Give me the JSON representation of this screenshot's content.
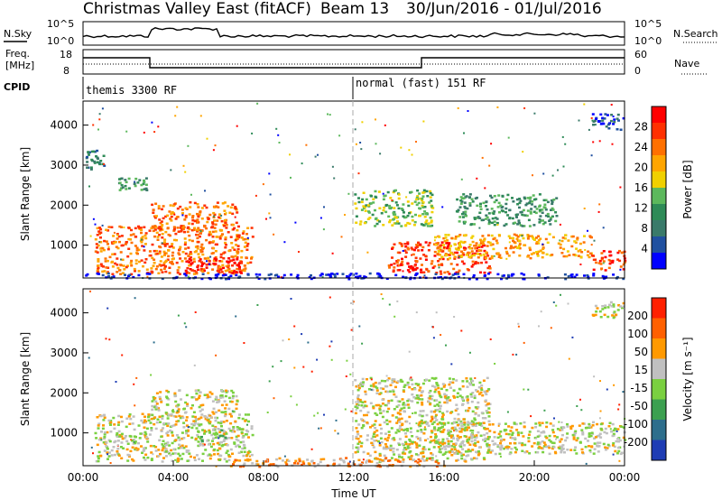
{
  "header": {
    "title": "Christmas Valley East (fitACF)",
    "beam": "Beam 13",
    "date_range": "30/Jun/2016 - 01/Jul/2016"
  },
  "noise_panel": {
    "left_label": "N.Sky",
    "left_ticks": [
      "10^5",
      "10^0"
    ],
    "right_ticks": [
      "10^5",
      "10^0"
    ],
    "right_label": "N.Search"
  },
  "freq_panel": {
    "left_label_1": "Freq.",
    "left_label_2": "[MHz]",
    "left_ticks": [
      "18",
      "8"
    ],
    "right_ticks": [
      "60",
      "0"
    ],
    "right_label": "Nave"
  },
  "cpid_panel": {
    "label": "CPID",
    "modes": [
      {
        "name": "themis 3300 RF",
        "start_hour": 0
      },
      {
        "name": "normal (fast) 151 RF",
        "start_hour": 12
      }
    ]
  },
  "x_axis": {
    "label": "Time UT",
    "ticks": [
      "00:00",
      "04:00",
      "08:00",
      "12:00",
      "16:00",
      "20:00",
      "00:00"
    ]
  },
  "power_panel": {
    "ylabel": "Slant Range [km]",
    "yticks": [
      "4000",
      "3000",
      "2000",
      "1000"
    ],
    "colorbar_label": "Power [dB]",
    "colorbar_ticks": [
      "28",
      "24",
      "20",
      "16",
      "12",
      "8",
      "4"
    ],
    "colors": [
      "#0000ff",
      "#2050a0",
      "#3a7a6a",
      "#2e8b57",
      "#5cb85c",
      "#f0d000",
      "#ffa500",
      "#ff7000",
      "#ff3000",
      "#ff0000"
    ]
  },
  "velocity_panel": {
    "ylabel": "Slant Range [km]",
    "yticks": [
      "4000",
      "3000",
      "2000",
      "1000"
    ],
    "colorbar_label": "Velocity [m s⁻¹]",
    "colorbar_ticks": [
      "200",
      "100",
      "50",
      "15",
      "-15",
      "-50",
      "-100",
      "-200"
    ],
    "colors": [
      "#1e3cb4",
      "#2d6e8c",
      "#3ca050",
      "#7ad040",
      "#c0c0c0",
      "#ff9900",
      "#ff6000",
      "#ff2000"
    ]
  },
  "chart_data": {
    "type": "heatmap",
    "x_range_hours": [
      0,
      24
    ],
    "y_range_km": [
      180,
      4600
    ],
    "power_blobs": [
      {
        "t0": 0.1,
        "t1": 0.9,
        "r0": 2900,
        "r1": 3400,
        "level": 2
      },
      {
        "t0": 0.5,
        "t1": 7.5,
        "r0": 300,
        "r1": 1500,
        "level": 7
      },
      {
        "t0": 3.0,
        "t1": 6.8,
        "r0": 1400,
        "r1": 2100,
        "level": 7
      },
      {
        "t0": 4.5,
        "t1": 7.0,
        "r0": 300,
        "r1": 700,
        "level": 9
      },
      {
        "t0": 1.5,
        "t1": 2.8,
        "r0": 2400,
        "r1": 2700,
        "level": 3
      },
      {
        "t0": 12.0,
        "t1": 15.5,
        "r0": 1500,
        "r1": 2400,
        "level": 4
      },
      {
        "t0": 13.5,
        "t1": 18.0,
        "r0": 300,
        "r1": 1100,
        "level": 8
      },
      {
        "t0": 15.5,
        "t1": 22.5,
        "r0": 700,
        "r1": 1300,
        "level": 6
      },
      {
        "t0": 16.5,
        "t1": 21.0,
        "r0": 1500,
        "r1": 2300,
        "level": 3
      },
      {
        "t0": 22.5,
        "t1": 24.0,
        "r0": 400,
        "r1": 900,
        "level": 8
      },
      {
        "t0": 22.5,
        "t1": 24.0,
        "r0": 3900,
        "r1": 4300,
        "level": 1
      },
      {
        "t0": 0.0,
        "t1": 24.0,
        "r0": 180,
        "r1": 320,
        "level": 0
      }
    ],
    "velocity_blobs": [
      {
        "t0": 0.5,
        "t1": 7.5,
        "r0": 300,
        "r1": 1500,
        "level": 4
      },
      {
        "t0": 3.0,
        "t1": 6.8,
        "r0": 1400,
        "r1": 2100,
        "level": 4
      },
      {
        "t0": 5.0,
        "t1": 6.5,
        "r0": 800,
        "r1": 1100,
        "level": 3
      },
      {
        "t0": 12.0,
        "t1": 18.0,
        "r0": 300,
        "r1": 2400,
        "level": 4
      },
      {
        "t0": 15.5,
        "t1": 24.0,
        "r0": 500,
        "r1": 1300,
        "level": 4
      },
      {
        "t0": 6.5,
        "t1": 16.0,
        "r0": 180,
        "r1": 400,
        "level": 5
      },
      {
        "t0": 22.5,
        "t1": 24.0,
        "r0": 3900,
        "r1": 4300,
        "level": 4
      }
    ]
  }
}
